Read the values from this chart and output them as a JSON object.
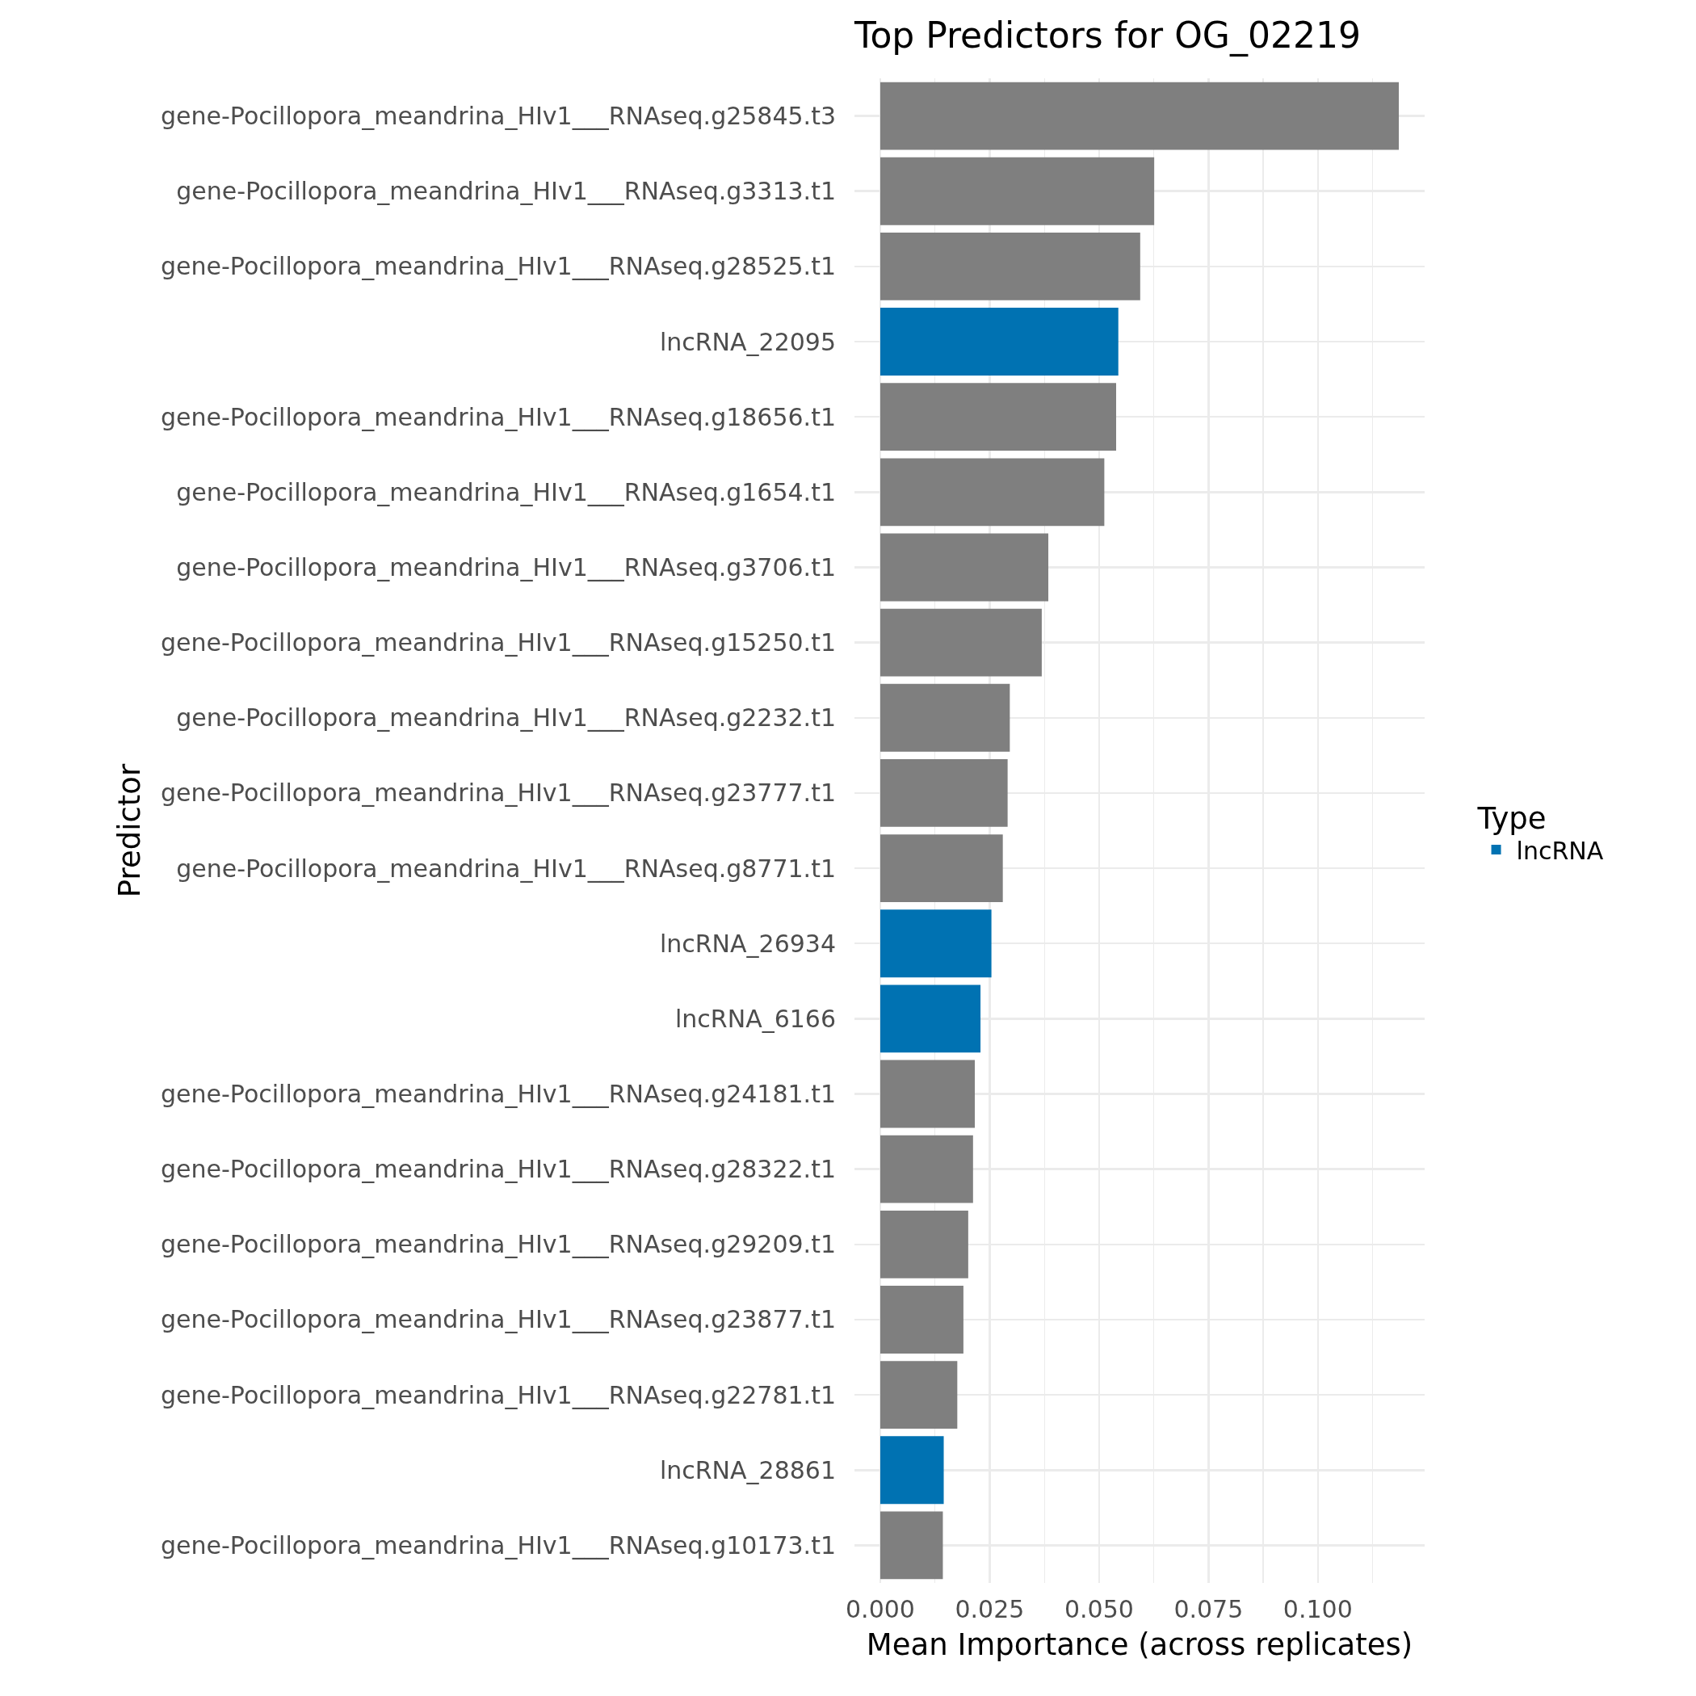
{
  "chart_data": {
    "type": "bar",
    "orientation": "horizontal",
    "title": "Top Predictors for OG_02219",
    "xlabel": "Mean Importance (across replicates)",
    "ylabel": "Predictor",
    "legend_title": "Type",
    "categories": [
      "gene-Pocillopora_meandrina_HIv1___RNAseq.g25845.t3",
      "gene-Pocillopora_meandrina_HIv1___RNAseq.g3313.t1",
      "gene-Pocillopora_meandrina_HIv1___RNAseq.g28525.t1",
      "lncRNA_22095",
      "gene-Pocillopora_meandrina_HIv1___RNAseq.g18656.t1",
      "gene-Pocillopora_meandrina_HIv1___RNAseq.g1654.t1",
      "gene-Pocillopora_meandrina_HIv1___RNAseq.g3706.t1",
      "gene-Pocillopora_meandrina_HIv1___RNAseq.g15250.t1",
      "gene-Pocillopora_meandrina_HIv1___RNAseq.g2232.t1",
      "gene-Pocillopora_meandrina_HIv1___RNAseq.g23777.t1",
      "gene-Pocillopora_meandrina_HIv1___RNAseq.g8771.t1",
      "lncRNA_26934",
      "lncRNA_6166",
      "gene-Pocillopora_meandrina_HIv1___RNAseq.g24181.t1",
      "gene-Pocillopora_meandrina_HIv1___RNAseq.g28322.t1",
      "gene-Pocillopora_meandrina_HIv1___RNAseq.g29209.t1",
      "gene-Pocillopora_meandrina_HIv1___RNAseq.g23877.t1",
      "gene-Pocillopora_meandrina_HIv1___RNAseq.g22781.t1",
      "lncRNA_28861",
      "gene-Pocillopora_meandrina_HIv1___RNAseq.g10173.t1"
    ],
    "series": [
      {
        "color": "#7f7f7f",
        "values": [
          0.1185,
          0.0626,
          0.0594,
          null,
          0.0539,
          0.0512,
          0.0384,
          0.0369,
          0.0296,
          0.0291,
          0.028,
          null,
          null,
          0.0216,
          0.0212,
          0.0201,
          0.019,
          0.0176,
          null,
          0.0143
        ]
      },
      {
        "name": "lncRNA",
        "color": "#0072b2",
        "values": [
          null,
          null,
          null,
          0.0544,
          null,
          null,
          null,
          null,
          null,
          null,
          null,
          0.0254,
          0.0229,
          null,
          null,
          null,
          null,
          null,
          0.0145,
          null
        ]
      }
    ],
    "xlim": [
      -0.0059,
      0.1244
    ],
    "xticks": [
      {
        "value": 0,
        "label": "0.000"
      },
      {
        "value": 0.0125,
        "label": null
      },
      0.025,
      {
        "value": 0.0375,
        "label": null
      },
      {
        "value": 0.05,
        "label": "0.050"
      },
      {
        "value": 0.0625,
        "label": null
      },
      0.075,
      {
        "value": 0.0875,
        "label": null
      },
      {
        "value": 0.1,
        "label": "0.100"
      },
      {
        "value": 0.1125,
        "label": null
      }
    ],
    "grid": true,
    "legend": "right"
  }
}
